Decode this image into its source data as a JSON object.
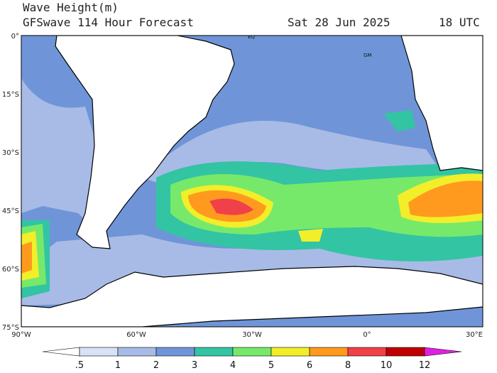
{
  "header": {
    "title": "Wave Height(m)",
    "subtitle": "GFSwave 114 Hour Forecast",
    "date": "Sat 28 Jun 2025",
    "time": "18 UTC"
  },
  "map": {
    "lat_labels": [
      "0°",
      "15°S",
      "30°S",
      "45°S",
      "60°S",
      "75°S"
    ],
    "lon_labels": [
      "90°W",
      "60°W",
      "30°W",
      "0°",
      "30°E"
    ],
    "markers": [
      "EQ",
      "GM"
    ]
  },
  "colorbar": {
    "levels": [
      {
        "value": 0.5,
        "label": ".5"
      },
      1,
      2,
      3,
      4,
      5,
      6,
      8,
      10,
      12
    ],
    "colors": [
      "#ffffff",
      "#d6e2f6",
      "#a8bbe6",
      "#6f95d8",
      "#33c4a3",
      "#77e96a",
      "#f2ee2a",
      "#ff9a1e",
      "#f0404a",
      "#c00000",
      "#e020e0"
    ]
  }
}
